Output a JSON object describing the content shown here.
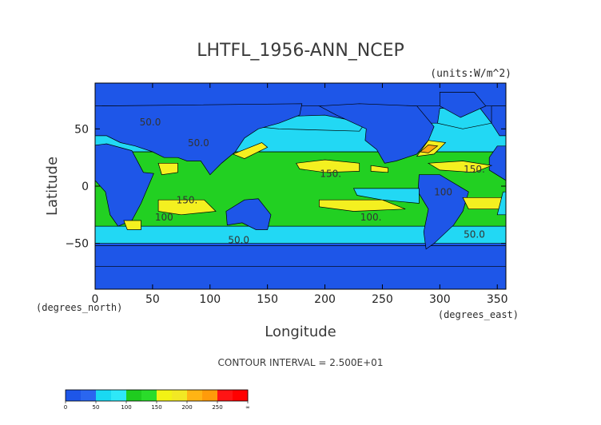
{
  "chart_data": {
    "type": "heatmap",
    "title": "LHTFL_1956-ANN_NCEP",
    "units_label": "(units:W/m^2)",
    "xlabel": "Longitude",
    "ylabel": "Latitude",
    "x_unit_label": "(degrees_east)",
    "y_unit_label": "(degrees_north)",
    "xlim": [
      0,
      357.5
    ],
    "ylim": [
      -90,
      90
    ],
    "x_ticks": [
      "0",
      "50",
      "100",
      "150",
      "200",
      "250",
      "300",
      "350"
    ],
    "y_ticks": [
      "50",
      "0",
      "−50"
    ],
    "contour_interval_text": "CONTOUR INTERVAL = 2.500E+01",
    "contour_labels": [
      {
        "text": "50.0",
        "x": 48,
        "y": 53
      },
      {
        "text": "50.0",
        "x": 90,
        "y": 35
      },
      {
        "text": "150.",
        "x": 205,
        "y": 8
      },
      {
        "text": "150.",
        "x": 330,
        "y": 12
      },
      {
        "text": "100",
        "x": 303,
        "y": -8
      },
      {
        "text": "150.",
        "x": 80,
        "y": -15
      },
      {
        "text": "100",
        "x": 60,
        "y": -30
      },
      {
        "text": "100.",
        "x": 240,
        "y": -30
      },
      {
        "text": "50.0",
        "x": 125,
        "y": -50
      },
      {
        "text": "50.0",
        "x": 330,
        "y": -45
      }
    ],
    "colorbar": {
      "bins": [
        {
          "from": 0,
          "to": 25,
          "color": "#1e56e8"
        },
        {
          "from": 25,
          "to": 50,
          "color": "#2a66f0"
        },
        {
          "from": 50,
          "to": 75,
          "color": "#19d9f2"
        },
        {
          "from": 75,
          "to": 100,
          "color": "#2ee8f8"
        },
        {
          "from": 100,
          "to": 125,
          "color": "#1fcc1f"
        },
        {
          "from": 125,
          "to": 150,
          "color": "#2adc2a"
        },
        {
          "from": 150,
          "to": 175,
          "color": "#f2f215"
        },
        {
          "from": 175,
          "to": 200,
          "color": "#f2e824"
        },
        {
          "from": 200,
          "to": 225,
          "color": "#ffb414"
        },
        {
          "from": 225,
          "to": 250,
          "color": "#ff9b0a"
        },
        {
          "from": 250,
          "to": 275,
          "color": "#ff1414"
        },
        {
          "from": 275,
          "to": "inf",
          "color": "#ff0000"
        }
      ],
      "tick_labels": [
        "0",
        "50",
        "100",
        "150",
        "200",
        "250",
        "∞"
      ]
    },
    "field_levels": [
      {
        "level": "0-50",
        "color": "#1e56e8"
      },
      {
        "level": "50-100",
        "color": "#22d8f4"
      },
      {
        "level": "100-150",
        "color": "#22d022"
      },
      {
        "level": "150-200",
        "color": "#f4f020"
      },
      {
        "level": "200-250",
        "color": "#ffa814"
      }
    ],
    "regions": [
      {
        "name": "tropical_band",
        "level": 2,
        "poly": [
          [
            0,
            30
          ],
          [
            357.5,
            30
          ],
          [
            357.5,
            -35
          ],
          [
            0,
            -35
          ]
        ]
      },
      {
        "name": "n_subtropics",
        "level": 1,
        "poly": [
          [
            0,
            55
          ],
          [
            357.5,
            55
          ],
          [
            357.5,
            30
          ],
          [
            0,
            30
          ]
        ]
      },
      {
        "name": "s_subtropics",
        "level": 1,
        "poly": [
          [
            0,
            -35
          ],
          [
            357.5,
            -35
          ],
          [
            357.5,
            -50
          ],
          [
            0,
            -50
          ]
        ]
      },
      {
        "name": "n_atlantic_high",
        "level": 1,
        "poly": [
          [
            300,
            68
          ],
          [
            335,
            68
          ],
          [
            345,
            55
          ],
          [
            320,
            50
          ],
          [
            298,
            55
          ]
        ]
      },
      {
        "name": "n_pacific_ll",
        "level": 1,
        "poly": [
          [
            140,
            60
          ],
          [
            200,
            62
          ],
          [
            235,
            55
          ],
          [
            230,
            48
          ],
          [
            160,
            50
          ],
          [
            140,
            52
          ]
        ]
      },
      {
        "name": "arctic_lowflux",
        "level": 0,
        "poly": [
          [
            0,
            90
          ],
          [
            357.5,
            90
          ],
          [
            357.5,
            70
          ],
          [
            0,
            70
          ]
        ]
      },
      {
        "name": "antarctic_lowflux",
        "level": 0,
        "poly": [
          [
            0,
            -52
          ],
          [
            357.5,
            -52
          ],
          [
            357.5,
            -90
          ],
          [
            0,
            -90
          ]
        ]
      },
      {
        "name": "n_america",
        "level": 0,
        "poly": [
          [
            195,
            70
          ],
          [
            230,
            72
          ],
          [
            280,
            70
          ],
          [
            295,
            52
          ],
          [
            290,
            40
          ],
          [
            280,
            28
          ],
          [
            262,
            22
          ],
          [
            252,
            20
          ],
          [
            245,
            32
          ],
          [
            235,
            40
          ],
          [
            236,
            50
          ],
          [
            210,
            62
          ]
        ]
      },
      {
        "name": "greenland",
        "level": 0,
        "poly": [
          [
            300,
            82
          ],
          [
            330,
            82
          ],
          [
            340,
            70
          ],
          [
            318,
            60
          ],
          [
            300,
            70
          ]
        ]
      },
      {
        "name": "eurasia",
        "level": 0,
        "poly": [
          [
            0,
            70
          ],
          [
            180,
            72
          ],
          [
            178,
            62
          ],
          [
            160,
            55
          ],
          [
            142,
            50
          ],
          [
            130,
            42
          ],
          [
            122,
            30
          ],
          [
            110,
            20
          ],
          [
            100,
            10
          ],
          [
            92,
            22
          ],
          [
            80,
            22
          ],
          [
            72,
            25
          ],
          [
            60,
            25
          ],
          [
            50,
            30
          ],
          [
            35,
            35
          ],
          [
            22,
            38
          ],
          [
            10,
            44
          ],
          [
            0,
            44
          ]
        ]
      },
      {
        "name": "eurasia_west",
        "level": 0,
        "poly": [
          [
            352,
            44
          ],
          [
            357.5,
            44
          ],
          [
            357.5,
            70
          ],
          [
            345,
            70
          ],
          [
            345,
            55
          ]
        ]
      },
      {
        "name": "africa",
        "level": 0,
        "poly": [
          [
            -5,
            35
          ],
          [
            10,
            37
          ],
          [
            32,
            31
          ],
          [
            42,
            12
          ],
          [
            51,
            11
          ],
          [
            40,
            -15
          ],
          [
            32,
            -30
          ],
          [
            20,
            -35
          ],
          [
            13,
            -25
          ],
          [
            9,
            -5
          ],
          [
            0,
            5
          ],
          [
            -5,
            5
          ],
          [
            -12,
            10
          ],
          [
            -17,
            20
          ]
        ]
      },
      {
        "name": "africa_westpart",
        "level": 0,
        "poly": [
          [
            343,
            14
          ],
          [
            357.5,
            5
          ],
          [
            357.5,
            35
          ],
          [
            350,
            35
          ],
          [
            343,
            25
          ]
        ]
      },
      {
        "name": "s_america",
        "level": 0,
        "poly": [
          [
            282,
            10
          ],
          [
            300,
            10
          ],
          [
            325,
            -5
          ],
          [
            320,
            -22
          ],
          [
            312,
            -34
          ],
          [
            295,
            -50
          ],
          [
            288,
            -55
          ],
          [
            286,
            -40
          ],
          [
            290,
            -20
          ],
          [
            281,
            -5
          ]
        ]
      },
      {
        "name": "australia",
        "level": 0,
        "poly": [
          [
            114,
            -22
          ],
          [
            130,
            -12
          ],
          [
            142,
            -11
          ],
          [
            153,
            -25
          ],
          [
            150,
            -38
          ],
          [
            140,
            -38
          ],
          [
            128,
            -32
          ],
          [
            115,
            -34
          ]
        ]
      },
      {
        "name": "antarctica",
        "level": 0,
        "poly": [
          [
            0,
            -70
          ],
          [
            357.5,
            -70
          ],
          [
            357.5,
            -90
          ],
          [
            0,
            -90
          ]
        ]
      },
      {
        "name": "kuroshio",
        "level": 3,
        "poly": [
          [
            120,
            28
          ],
          [
            145,
            38
          ],
          [
            150,
            34
          ],
          [
            130,
            24
          ]
        ]
      },
      {
        "name": "gulf_stream",
        "level": 3,
        "poly": [
          [
            280,
            26
          ],
          [
            290,
            40
          ],
          [
            305,
            38
          ],
          [
            295,
            28
          ]
        ]
      },
      {
        "name": "gulf_stream_core",
        "level": 4,
        "poly": [
          [
            283,
            30
          ],
          [
            290,
            36
          ],
          [
            298,
            35
          ],
          [
            290,
            29
          ]
        ]
      },
      {
        "name": "n_pacific_tw",
        "level": 3,
        "poly": [
          [
            175,
            20
          ],
          [
            200,
            23
          ],
          [
            230,
            20
          ],
          [
            230,
            13
          ],
          [
            200,
            12
          ],
          [
            178,
            15
          ]
        ]
      },
      {
        "name": "n_pacific_tw_e",
        "level": 3,
        "poly": [
          [
            240,
            18
          ],
          [
            255,
            16
          ],
          [
            255,
            12
          ],
          [
            240,
            13
          ]
        ]
      },
      {
        "name": "caribbean",
        "level": 3,
        "poly": [
          [
            290,
            20
          ],
          [
            320,
            22
          ],
          [
            345,
            18
          ],
          [
            330,
            12
          ],
          [
            300,
            14
          ]
        ]
      },
      {
        "name": "arabian_sea",
        "level": 3,
        "poly": [
          [
            55,
            20
          ],
          [
            72,
            20
          ],
          [
            72,
            12
          ],
          [
            58,
            10
          ]
        ]
      },
      {
        "name": "s_indian_tw",
        "level": 3,
        "poly": [
          [
            55,
            -12
          ],
          [
            95,
            -12
          ],
          [
            105,
            -22
          ],
          [
            75,
            -25
          ],
          [
            55,
            -22
          ]
        ]
      },
      {
        "name": "s_pacific_tw",
        "level": 3,
        "poly": [
          [
            195,
            -12
          ],
          [
            250,
            -12
          ],
          [
            270,
            -20
          ],
          [
            225,
            -22
          ],
          [
            195,
            -18
          ]
        ]
      },
      {
        "name": "s_atlantic_tw",
        "level": 3,
        "poly": [
          [
            320,
            -10
          ],
          [
            355,
            -10
          ],
          [
            355,
            -20
          ],
          [
            325,
            -20
          ]
        ]
      },
      {
        "name": "agulhas",
        "level": 3,
        "poly": [
          [
            25,
            -30
          ],
          [
            40,
            -30
          ],
          [
            40,
            -38
          ],
          [
            28,
            -38
          ]
        ]
      },
      {
        "name": "e_pacific_cold_tongue",
        "level": 1,
        "poly": [
          [
            225,
            -2
          ],
          [
            282,
            -2
          ],
          [
            282,
            -15
          ],
          [
            250,
            -12
          ],
          [
            228,
            -8
          ]
        ]
      },
      {
        "name": "w_africa_upwelling",
        "level": 1,
        "poly": [
          [
            355,
            -5
          ],
          [
            357.5,
            -5
          ],
          [
            357.5,
            -25
          ],
          [
            350,
            -25
          ]
        ]
      }
    ]
  }
}
